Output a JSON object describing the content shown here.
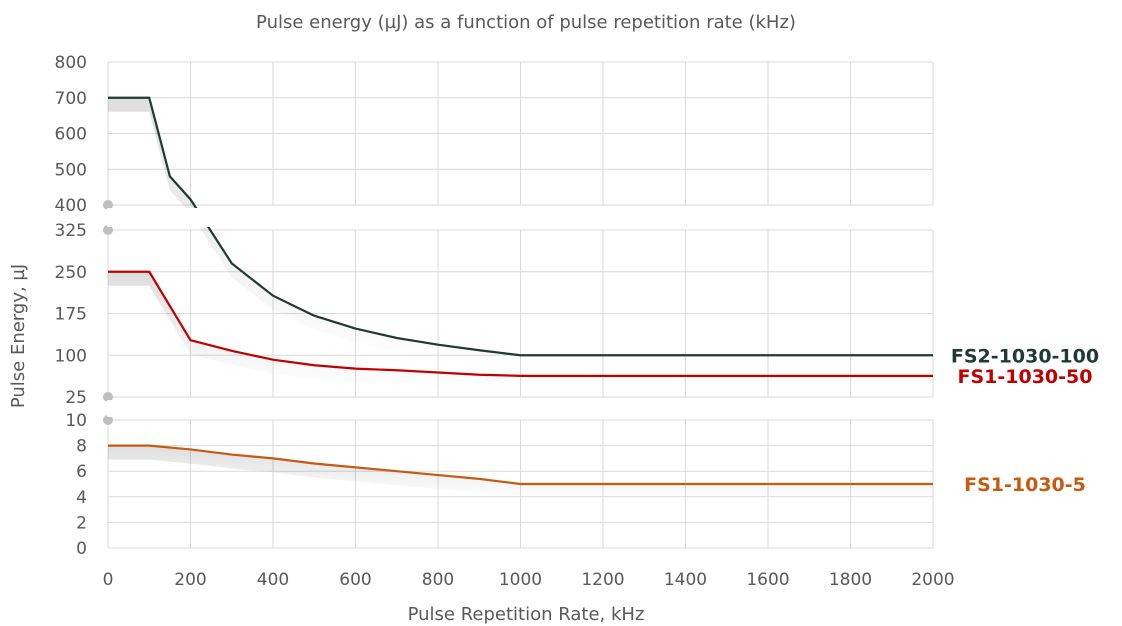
{
  "chart_data": {
    "type": "line",
    "title": "Pulse energy (µJ) as a function of pulse repetition rate (kHz)",
    "xlabel": "Pulse Repetition Rate, kHz",
    "ylabel": "Pulse Energy, µJ",
    "xlim": [
      0,
      2000
    ],
    "x_ticks": [
      0,
      200,
      400,
      600,
      800,
      1000,
      1200,
      1400,
      1600,
      1800,
      2000
    ],
    "broken_y_axis": true,
    "grid": true,
    "legend": "series labels at right end of lines",
    "panels": [
      {
        "name": "top",
        "ylim": [
          400,
          800
        ],
        "y_ticks": [
          400,
          500,
          600,
          700,
          800
        ]
      },
      {
        "name": "middle",
        "ylim": [
          25,
          325
        ],
        "y_ticks": [
          25,
          100,
          175,
          250,
          325
        ]
      },
      {
        "name": "bottom",
        "ylim": [
          0,
          10
        ],
        "y_ticks": [
          0,
          2,
          4,
          6,
          8,
          10
        ]
      }
    ],
    "series": [
      {
        "name": "FS2-1030-100",
        "color": "#1f3a35",
        "x": [
          0,
          100,
          150,
          200,
          300,
          400,
          500,
          600,
          700,
          800,
          900,
          1000,
          2000
        ],
        "y": [
          700,
          700,
          480,
          380,
          265,
          207,
          171,
          148,
          131,
          119,
          109,
          100,
          100
        ]
      },
      {
        "name": "FS1-1030-50",
        "color": "#c00000",
        "x": [
          0,
          100,
          200,
          300,
          400,
          500,
          600,
          700,
          800,
          900,
          1000,
          2000
        ],
        "y": [
          250,
          250,
          127,
          108,
          92,
          82,
          76,
          73,
          69,
          65,
          63,
          63
        ]
      },
      {
        "name": "FS1-1030-5",
        "color": "#c55a11",
        "x": [
          0,
          100,
          200,
          300,
          400,
          500,
          600,
          700,
          800,
          900,
          1000,
          2000
        ],
        "y": [
          8,
          8,
          7.7,
          7.3,
          7.0,
          6.6,
          6.3,
          6.0,
          5.7,
          5.4,
          5.0,
          5.0
        ]
      }
    ]
  }
}
